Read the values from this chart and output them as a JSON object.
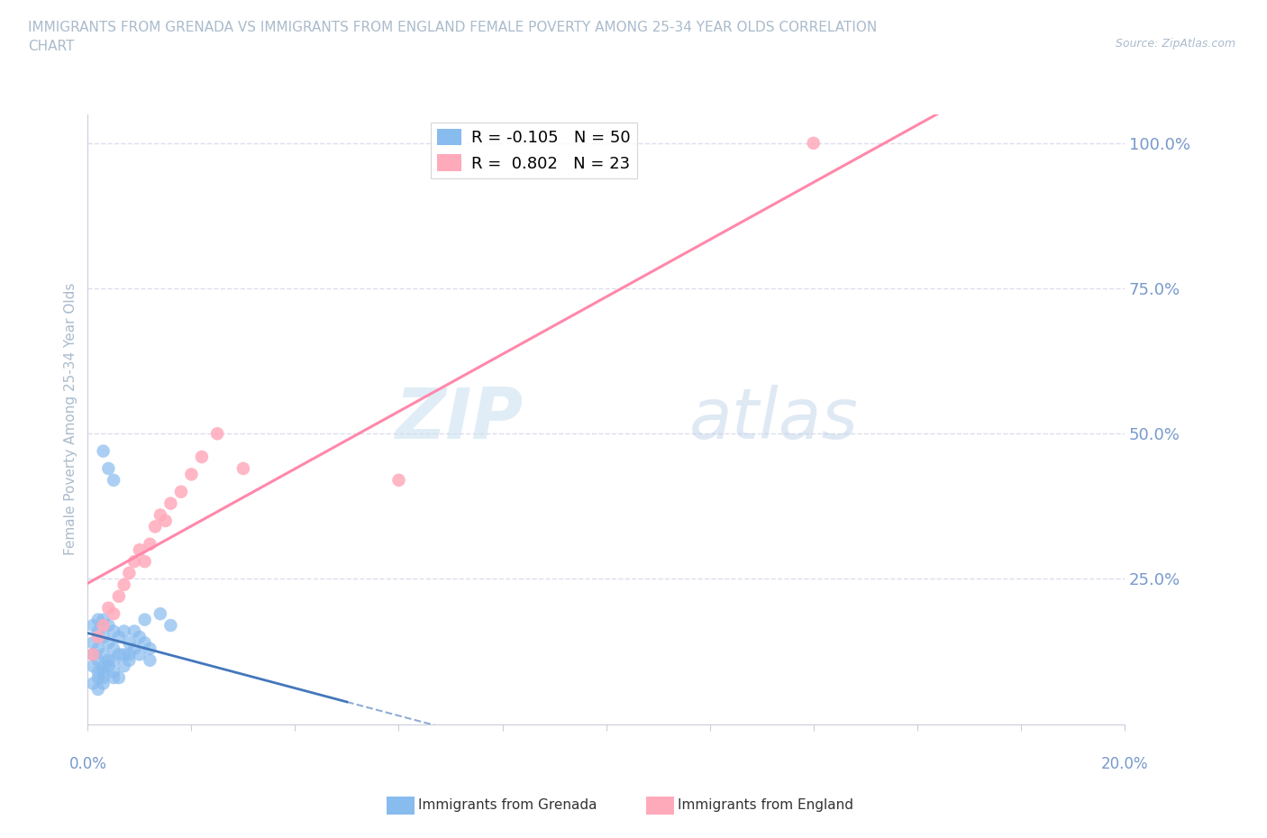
{
  "title": "IMMIGRANTS FROM GRENADA VS IMMIGRANTS FROM ENGLAND FEMALE POVERTY AMONG 25-34 YEAR OLDS CORRELATION\nCHART",
  "source": "Source: ZipAtlas.com",
  "ylabel": "Female Poverty Among 25-34 Year Olds",
  "right_yticks": [
    "100.0%",
    "75.0%",
    "50.0%",
    "25.0%"
  ],
  "right_ytick_vals": [
    1.0,
    0.75,
    0.5,
    0.25
  ],
  "watermark_zip": "ZIP",
  "watermark_atlas": "atlas",
  "legend_grenada_R": "-0.105",
  "legend_grenada_N": "50",
  "legend_england_R": "0.802",
  "legend_england_N": "23",
  "grenada_color": "#88bbee",
  "england_color": "#ffaabb",
  "grenada_line_color": "#4477bb",
  "england_line_color": "#ff88aa",
  "scatter_grenada_x": [
    0.001,
    0.001,
    0.001,
    0.001,
    0.002,
    0.002,
    0.002,
    0.002,
    0.002,
    0.003,
    0.003,
    0.003,
    0.003,
    0.003,
    0.004,
    0.004,
    0.004,
    0.005,
    0.005,
    0.005,
    0.005,
    0.006,
    0.006,
    0.007,
    0.007,
    0.008,
    0.008,
    0.009,
    0.01,
    0.01,
    0.011,
    0.012,
    0.012,
    0.001,
    0.002,
    0.002,
    0.003,
    0.003,
    0.004,
    0.005,
    0.006,
    0.007,
    0.008,
    0.003,
    0.004,
    0.005,
    0.009,
    0.011,
    0.014,
    0.016
  ],
  "scatter_grenada_y": [
    0.17,
    0.14,
    0.12,
    0.1,
    0.18,
    0.16,
    0.13,
    0.11,
    0.09,
    0.18,
    0.15,
    0.12,
    0.1,
    0.08,
    0.17,
    0.14,
    0.11,
    0.16,
    0.13,
    0.11,
    0.08,
    0.15,
    0.12,
    0.16,
    0.12,
    0.14,
    0.11,
    0.13,
    0.15,
    0.12,
    0.14,
    0.13,
    0.11,
    0.07,
    0.08,
    0.06,
    0.09,
    0.07,
    0.1,
    0.09,
    0.08,
    0.1,
    0.12,
    0.47,
    0.44,
    0.42,
    0.16,
    0.18,
    0.19,
    0.17
  ],
  "scatter_england_x": [
    0.001,
    0.002,
    0.003,
    0.004,
    0.005,
    0.006,
    0.007,
    0.008,
    0.009,
    0.01,
    0.011,
    0.012,
    0.013,
    0.014,
    0.015,
    0.016,
    0.018,
    0.02,
    0.022,
    0.025,
    0.03,
    0.06,
    0.14
  ],
  "scatter_england_y": [
    0.12,
    0.15,
    0.17,
    0.2,
    0.19,
    0.22,
    0.24,
    0.26,
    0.28,
    0.3,
    0.28,
    0.31,
    0.34,
    0.36,
    0.35,
    0.38,
    0.4,
    0.43,
    0.46,
    0.5,
    0.44,
    0.42,
    1.0
  ],
  "xlim": [
    0.0,
    0.2
  ],
  "ylim": [
    0.0,
    1.05
  ],
  "background_color": "#ffffff",
  "grid_color": "#ddddee",
  "title_color": "#aabbcc",
  "axis_color": "#ccccdd",
  "tick_color": "#7799cc"
}
